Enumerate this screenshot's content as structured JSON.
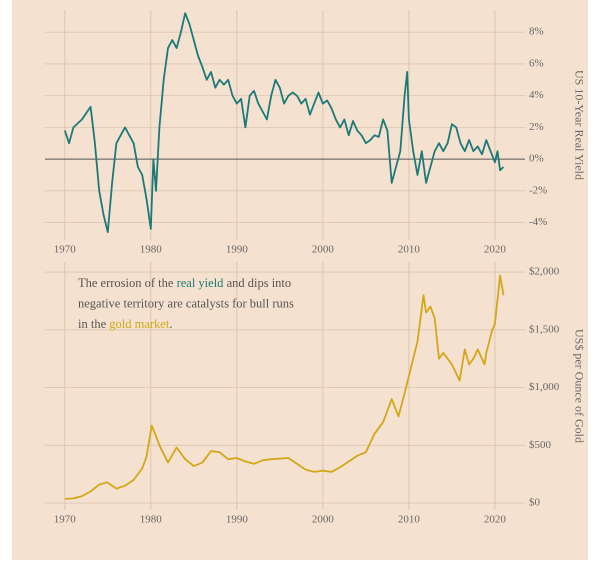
{
  "chart_data": [
    {
      "type": "line",
      "ylabel": "US 10-Year Real Yield",
      "color": "#1b7a78",
      "grid": true,
      "zero_line": true,
      "xlim": [
        1967.7,
        2023.5
      ],
      "xticks": [
        1970,
        1980,
        1990,
        2000,
        2010,
        2020
      ],
      "ylim": [
        -5.1,
        9.4
      ],
      "yticks": [
        {
          "value": -4,
          "label": "-4%"
        },
        {
          "value": -2,
          "label": "-2%"
        },
        {
          "value": 0,
          "label": "0%"
        },
        {
          "value": 2,
          "label": "2%"
        },
        {
          "value": 4,
          "label": "4%"
        },
        {
          "value": 6,
          "label": "6%"
        },
        {
          "value": 8,
          "label": "8%"
        }
      ],
      "x": [
        1970,
        1970.5,
        1971,
        1972,
        1973,
        1973.5,
        1974,
        1974.5,
        1975,
        1975.5,
        1976,
        1977,
        1977.5,
        1978,
        1978.5,
        1979,
        1979.5,
        1980,
        1980.3,
        1980.6,
        1981,
        1981.5,
        1982,
        1982.5,
        1983,
        1983.5,
        1984,
        1984.5,
        1985,
        1985.5,
        1986,
        1986.5,
        1987,
        1987.5,
        1988,
        1988.5,
        1989,
        1989.5,
        1990,
        1990.5,
        1991,
        1991.5,
        1992,
        1992.5,
        1993,
        1993.5,
        1994,
        1994.5,
        1995,
        1995.5,
        1996,
        1996.5,
        1997,
        1997.5,
        1998,
        1998.5,
        1999,
        1999.5,
        2000,
        2000.5,
        2001,
        2001.5,
        2002,
        2002.5,
        2003,
        2003.5,
        2004,
        2004.5,
        2005,
        2005.5,
        2006,
        2006.5,
        2007,
        2007.5,
        2008,
        2008.5,
        2009,
        2009.5,
        2009.8,
        2010,
        2010.5,
        2011,
        2011.5,
        2012,
        2012.5,
        2013,
        2013.5,
        2014,
        2014.5,
        2015,
        2015.5,
        2016,
        2016.5,
        2017,
        2017.5,
        2018,
        2018.5,
        2019,
        2019.5,
        2020,
        2020.3,
        2020.6,
        2021
      ],
      "values": [
        1.8,
        1.0,
        2.0,
        2.5,
        3.3,
        1.0,
        -2.0,
        -3.5,
        -4.6,
        -1.5,
        1.0,
        2.0,
        1.5,
        1.0,
        -0.5,
        -1.0,
        -2.5,
        -4.4,
        0.0,
        -2.0,
        2.0,
        5.0,
        7.0,
        7.5,
        7.0,
        8.0,
        9.2,
        8.5,
        7.5,
        6.5,
        5.8,
        5.0,
        5.5,
        4.5,
        5.0,
        4.7,
        5.0,
        4.0,
        3.5,
        3.8,
        2.0,
        4.0,
        4.3,
        3.5,
        3.0,
        2.5,
        4.0,
        5.0,
        4.5,
        3.5,
        4.0,
        4.2,
        4.0,
        3.5,
        3.8,
        2.8,
        3.5,
        4.2,
        3.5,
        3.7,
        3.2,
        2.5,
        2.0,
        2.5,
        1.5,
        2.4,
        1.8,
        1.5,
        1.0,
        1.2,
        1.5,
        1.4,
        2.5,
        1.8,
        -1.5,
        -0.5,
        0.5,
        4.0,
        5.5,
        2.5,
        0.5,
        -1.0,
        0.5,
        -1.5,
        -0.5,
        0.5,
        1.0,
        0.5,
        1.0,
        2.2,
        2.0,
        1.0,
        0.5,
        1.2,
        0.5,
        0.8,
        0.3,
        1.2,
        0.5,
        -0.2,
        0.5,
        -0.7,
        -0.5
      ]
    },
    {
      "type": "line",
      "ylabel": "US$ per Ounce of Gold",
      "color": "#d4a718",
      "grid": true,
      "xlim": [
        1967.7,
        2023.5
      ],
      "xticks": [
        1970,
        1980,
        1990,
        2000,
        2010,
        2020
      ],
      "ylim": [
        -60,
        2087
      ],
      "yticks": [
        {
          "value": 0,
          "label": "$0"
        },
        {
          "value": 500,
          "label": "$500"
        },
        {
          "value": 1000,
          "label": "$1,000"
        },
        {
          "value": 1500,
          "label": "$1,500"
        },
        {
          "value": 2000,
          "label": "$2,000"
        }
      ],
      "annotation_lines": [
        [
          {
            "text": "The errosion of the "
          },
          {
            "text": "real yield",
            "color": "#1b7a78"
          },
          {
            "text": " and dips into"
          }
        ],
        [
          {
            "text": "negative territory are catalysts for bull runs"
          }
        ],
        [
          {
            "text": "in the "
          },
          {
            "text": "gold market",
            "color": "#d4a718"
          },
          {
            "text": "."
          }
        ]
      ],
      "x": [
        1970,
        1971,
        1972,
        1973,
        1974,
        1974.9,
        1976,
        1977,
        1978,
        1979,
        1979.5,
        1980.1,
        1980.5,
        1981,
        1982,
        1983,
        1984,
        1985,
        1986,
        1987,
        1988,
        1989,
        1990,
        1991,
        1992,
        1993,
        1994,
        1995,
        1996,
        1997,
        1998,
        1999,
        2000,
        2001,
        2002,
        2003,
        2004,
        2005,
        2006,
        2007,
        2008,
        2008.8,
        2009.5,
        2010,
        2010.5,
        2011,
        2011.7,
        2012,
        2012.5,
        2013,
        2013.5,
        2014,
        2014.5,
        2015,
        2015.9,
        2016.5,
        2017,
        2017.5,
        2018,
        2018.8,
        2019,
        2019.7,
        2020,
        2020.6,
        2021
      ],
      "values": [
        36,
        40,
        60,
        100,
        160,
        180,
        125,
        150,
        200,
        300,
        400,
        670,
        600,
        500,
        350,
        480,
        380,
        320,
        350,
        450,
        440,
        380,
        390,
        360,
        340,
        370,
        380,
        385,
        390,
        340,
        290,
        270,
        280,
        270,
        310,
        360,
        410,
        440,
        600,
        700,
        900,
        750,
        950,
        1100,
        1250,
        1400,
        1800,
        1650,
        1700,
        1600,
        1250,
        1300,
        1250,
        1200,
        1060,
        1330,
        1200,
        1250,
        1330,
        1200,
        1300,
        1500,
        1550,
        1970,
        1800
      ]
    }
  ]
}
